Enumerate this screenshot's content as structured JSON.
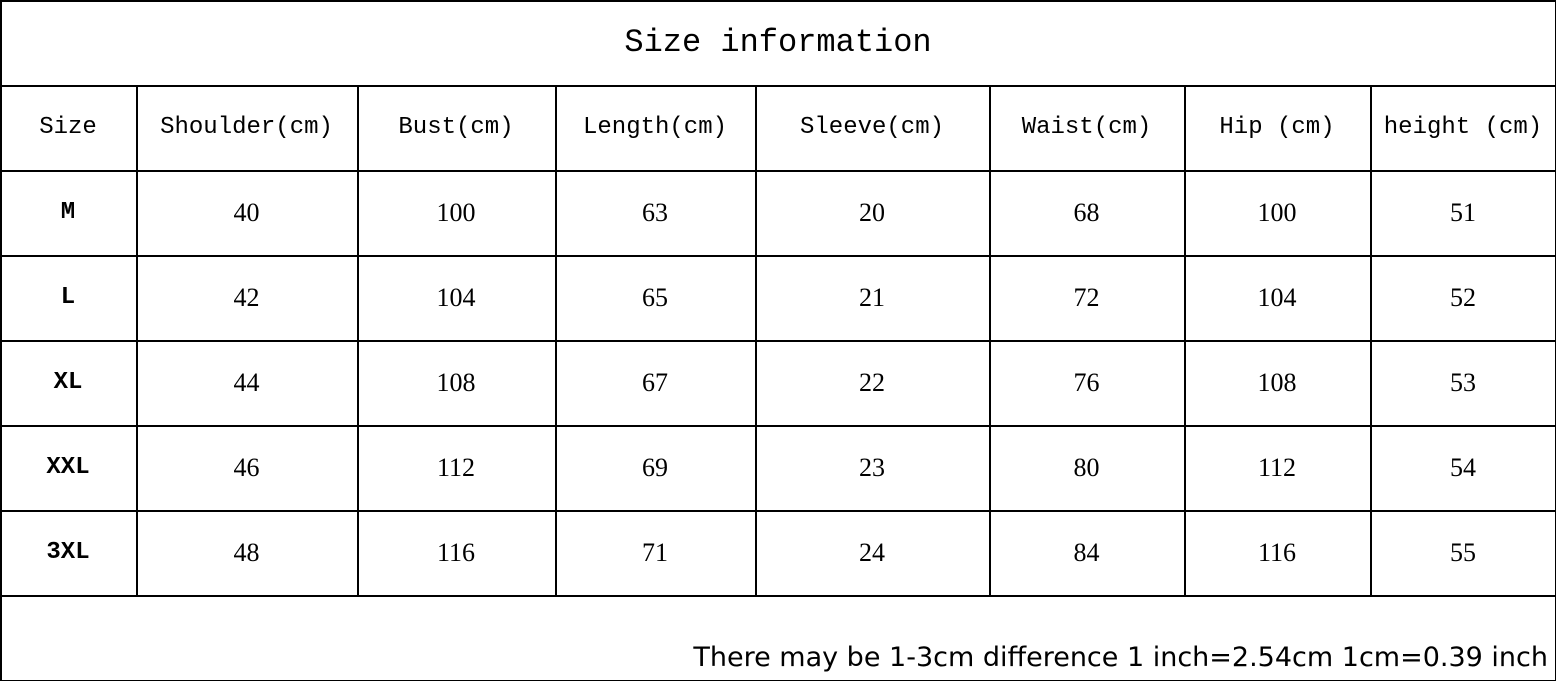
{
  "title": "Size information",
  "table": {
    "header": [
      "Size",
      "Shoulder(cm)",
      "Bust(cm)",
      "Length(cm)",
      "Sleeve(cm)",
      "Waist(cm)",
      "Hip (cm)",
      "height (cm)"
    ],
    "rows": [
      [
        "M",
        40,
        100,
        63,
        20,
        68,
        100,
        51
      ],
      [
        "L",
        42,
        104,
        65,
        21,
        72,
        104,
        52
      ],
      [
        "XL",
        44,
        108,
        67,
        22,
        76,
        108,
        53
      ],
      [
        "XXL",
        46,
        112,
        69,
        23,
        80,
        112,
        54
      ],
      [
        "3XL",
        48,
        116,
        71,
        24,
        84,
        116,
        55
      ]
    ]
  },
  "note": "There may be 1-3cm difference 1 inch=2.54cm 1cm=0.39 inch"
}
